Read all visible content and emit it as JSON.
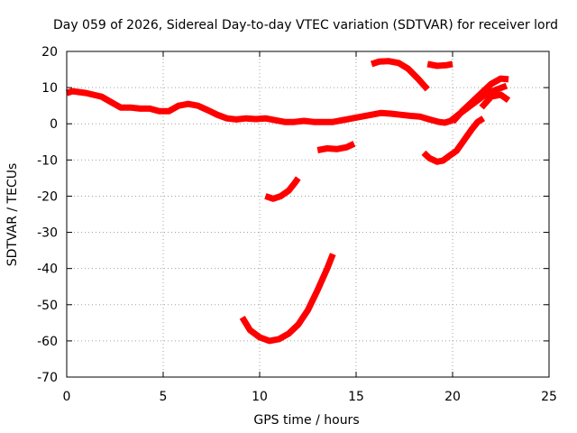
{
  "chart_data": {
    "type": "line",
    "title": "Day 059 of 2026, Sidereal Day-to-day VTEC variation (SDTVAR) for receiver lord",
    "xlabel": "GPS time / hours",
    "ylabel": "SDTVAR / TECUs",
    "xlim": [
      0,
      25
    ],
    "ylim": [
      -70,
      20
    ],
    "xticks": [
      0,
      5,
      10,
      15,
      20,
      25
    ],
    "yticks": [
      20,
      10,
      0,
      -10,
      -20,
      -30,
      -40,
      -50,
      -60,
      -70
    ],
    "grid": true,
    "legend": "none",
    "colors": {
      "series": "#ff0000",
      "grid": "#a0a0a0",
      "axis": "#000000"
    },
    "series": [
      {
        "name": "main-trace",
        "x": [
          0.0,
          0.3,
          1.0,
          1.8,
          2.3,
          2.8,
          3.3,
          3.8,
          4.3,
          4.8,
          5.3,
          5.8,
          6.3,
          6.8,
          7.3,
          7.8,
          8.3,
          8.8,
          9.3,
          9.8,
          10.3,
          10.8,
          11.3,
          11.8,
          12.3,
          12.8,
          13.3,
          13.8,
          14.3,
          14.8,
          15.3,
          15.8,
          16.3,
          16.8,
          17.3,
          17.8,
          18.3,
          18.8,
          19.3,
          19.6,
          19.9,
          20.3,
          20.8,
          21.3,
          21.8,
          22.3,
          22.8
        ],
        "y": [
          8.5,
          9,
          8.5,
          7.5,
          6,
          4.5,
          4.5,
          4.2,
          4.2,
          3.5,
          3.5,
          5,
          5.5,
          5,
          3.8,
          2.5,
          1.5,
          1.2,
          1.5,
          1.3,
          1.5,
          1.0,
          0.5,
          0.5,
          0.8,
          0.5,
          0.5,
          0.5,
          1,
          1.5,
          2,
          2.5,
          3,
          2.8,
          2.5,
          2.2,
          2,
          1.2,
          0.5,
          0.3,
          0.8,
          2.5,
          4.5,
          6.5,
          8.5,
          9.5,
          10.5
        ]
      },
      {
        "name": "upper-arc-15-19",
        "x": [
          15.8,
          16.2,
          16.7,
          17.2,
          17.7,
          18.2,
          18.7
        ],
        "y": [
          16.5,
          17.2,
          17.3,
          16.8,
          15.2,
          12.5,
          9.5
        ]
      },
      {
        "name": "short-upper-19",
        "x": [
          18.7,
          19.2,
          19.7,
          20.0
        ],
        "y": [
          16.5,
          16.0,
          16.2,
          16.5
        ]
      },
      {
        "name": "rising-20-23",
        "x": [
          20.0,
          20.5,
          21.0,
          21.5,
          22.0,
          22.5,
          22.9
        ],
        "y": [
          0.5,
          3.5,
          6.0,
          8.5,
          11.0,
          12.5,
          12.3
        ]
      },
      {
        "name": "late-cluster-22",
        "x": [
          21.5,
          22.0,
          22.5,
          22.9
        ],
        "y": [
          4.5,
          7.5,
          8.0,
          6.5
        ]
      },
      {
        "name": "trace-13-15",
        "x": [
          13.0,
          13.5,
          14.0,
          14.5,
          14.9
        ],
        "y": [
          -7.3,
          -6.8,
          -7.0,
          -6.5,
          -5.5
        ]
      },
      {
        "name": "trace-18-21",
        "x": [
          18.5,
          18.8,
          19.2,
          19.5,
          19.8,
          20.2,
          20.6,
          21.0,
          21.3,
          21.6
        ],
        "y": [
          -8.0,
          -9.5,
          -10.5,
          -10.2,
          -9.0,
          -7.5,
          -4.5,
          -1.5,
          0.5,
          1.5
        ]
      },
      {
        "name": "arc-10-12",
        "x": [
          10.3,
          10.7,
          11.1,
          11.5,
          11.8,
          12.0
        ],
        "y": [
          -20.0,
          -20.7,
          -20.0,
          -18.5,
          -16.5,
          -15.0
        ]
      },
      {
        "name": "deep-arc-9-14",
        "x": [
          9.1,
          9.5,
          10.0,
          10.5,
          11.0,
          11.5,
          12.0,
          12.5,
          13.0,
          13.5,
          13.8
        ],
        "y": [
          -53.5,
          -57.0,
          -59.0,
          -60.0,
          -59.5,
          -58.0,
          -55.5,
          -51.5,
          -46.0,
          -40.0,
          -36.0
        ]
      }
    ]
  }
}
